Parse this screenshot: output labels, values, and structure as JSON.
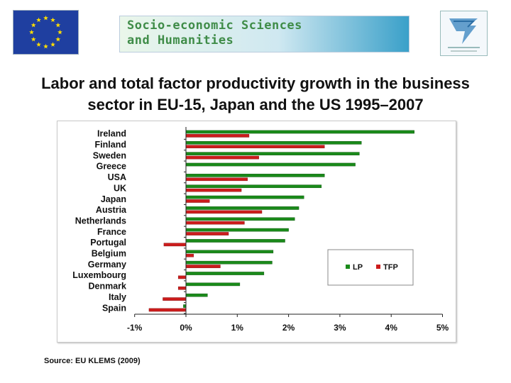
{
  "header": {
    "banner_line1": "Socio-economic Sciences",
    "banner_line2": "and Humanities"
  },
  "title": {
    "line1": "Labor and total factor productivity growth in the business",
    "line2": "sector in EU-15, Japan and the US 1995–2007"
  },
  "source": "Source: EU KLEMS (2009)",
  "colors": {
    "LP": "#1a8a1a",
    "TFP": "#cc1c1c"
  },
  "chart_data": {
    "type": "bar",
    "orientation": "horizontal",
    "categories": [
      "Ireland",
      "Finland",
      "Sweden",
      "Greece",
      "USA",
      "UK",
      "Japan",
      "Austria",
      "Netherlands",
      "France",
      "Portugal",
      "Belgium",
      "Germany",
      "Luxembourg",
      "Denmark",
      "Italy",
      "Spain"
    ],
    "series": [
      {
        "name": "LP",
        "values": [
          4.45,
          3.42,
          3.38,
          3.3,
          2.7,
          2.64,
          2.3,
          2.2,
          2.12,
          2.0,
          1.93,
          1.7,
          1.68,
          1.52,
          1.05,
          0.42,
          -0.05
        ]
      },
      {
        "name": "TFP",
        "values": [
          1.23,
          2.7,
          1.42,
          null,
          1.2,
          1.08,
          0.46,
          1.48,
          1.14,
          0.83,
          -0.43,
          0.15,
          0.67,
          -0.15,
          -0.15,
          -0.45,
          -0.72
        ]
      }
    ],
    "xlim": [
      -1,
      5
    ],
    "xticks": [
      "-1%",
      "0%",
      "1%",
      "2%",
      "3%",
      "4%",
      "5%"
    ],
    "legend_position": "bottom-right",
    "grid": false
  }
}
